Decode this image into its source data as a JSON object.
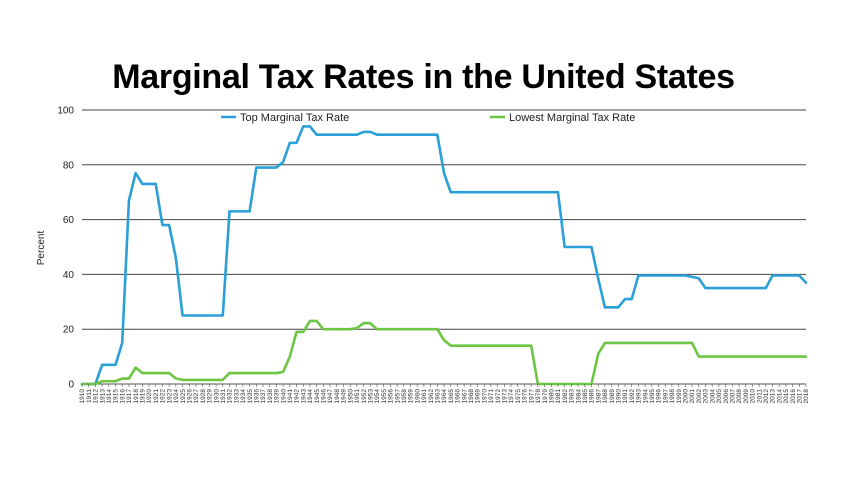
{
  "chart_data": {
    "type": "line",
    "title": "Marginal Tax Rates in the United States",
    "xlabel": "",
    "ylabel": "Percent",
    "ylim": [
      0,
      100
    ],
    "yticks": [
      0,
      20,
      40,
      60,
      80,
      100
    ],
    "grid": "horizontal",
    "legend_position": "top",
    "x": [
      1910,
      1911,
      1912,
      1913,
      1914,
      1915,
      1916,
      1917,
      1918,
      1919,
      1920,
      1921,
      1922,
      1923,
      1924,
      1925,
      1926,
      1927,
      1928,
      1929,
      1930,
      1931,
      1932,
      1933,
      1934,
      1935,
      1936,
      1937,
      1938,
      1939,
      1940,
      1941,
      1942,
      1943,
      1944,
      1945,
      1946,
      1947,
      1948,
      1949,
      1950,
      1951,
      1952,
      1953,
      1954,
      1955,
      1956,
      1957,
      1958,
      1959,
      1960,
      1961,
      1962,
      1963,
      1964,
      1965,
      1966,
      1967,
      1968,
      1969,
      1970,
      1971,
      1972,
      1973,
      1974,
      1975,
      1976,
      1977,
      1978,
      1979,
      1980,
      1981,
      1982,
      1983,
      1984,
      1985,
      1986,
      1987,
      1988,
      1989,
      1990,
      1991,
      1992,
      1993,
      1994,
      1995,
      1996,
      1997,
      1998,
      1999,
      2000,
      2001,
      2002,
      2003,
      2004,
      2005,
      2006,
      2007,
      2008,
      2009,
      2010,
      2011,
      2012,
      2013,
      2014,
      2015,
      2016,
      2017,
      2018
    ],
    "series": [
      {
        "name": "Top Marginal Tax Rate",
        "color": "#2a9fd8",
        "values": [
          0,
          0,
          0,
          7,
          7,
          7,
          15,
          67,
          77,
          73,
          73,
          73,
          58,
          58,
          46,
          25,
          25,
          25,
          25,
          25,
          25,
          25,
          63,
          63,
          63,
          63,
          79,
          79,
          79,
          79,
          81,
          88,
          88,
          94,
          94,
          91,
          91,
          91,
          91,
          91,
          91,
          91,
          92,
          92,
          91,
          91,
          91,
          91,
          91,
          91,
          91,
          91,
          91,
          91,
          77,
          70,
          70,
          70,
          70,
          70,
          70,
          70,
          70,
          70,
          70,
          70,
          70,
          70,
          70,
          70,
          70,
          70,
          50,
          50,
          50,
          50,
          50,
          38.5,
          28,
          28,
          28,
          31,
          31,
          39.6,
          39.6,
          39.6,
          39.6,
          39.6,
          39.6,
          39.6,
          39.6,
          39.1,
          38.6,
          35,
          35,
          35,
          35,
          35,
          35,
          35,
          35,
          35,
          35,
          39.6,
          39.6,
          39.6,
          39.6,
          39.6,
          37
        ]
      },
      {
        "name": "Lowest Marginal Tax Rate",
        "color": "#6cc644",
        "values": [
          0,
          0,
          0,
          1,
          1,
          1,
          2,
          2,
          6,
          4,
          4,
          4,
          4,
          4,
          2,
          1.5,
          1.5,
          1.5,
          1.5,
          1.5,
          1.5,
          1.5,
          4,
          4,
          4,
          4,
          4,
          4,
          4,
          4,
          4.4,
          10,
          19,
          19,
          23,
          23,
          20,
          20,
          20,
          20,
          20,
          20.4,
          22.2,
          22.2,
          20,
          20,
          20,
          20,
          20,
          20,
          20,
          20,
          20,
          20,
          16,
          14,
          14,
          14,
          14,
          14,
          14,
          14,
          14,
          14,
          14,
          14,
          14,
          14,
          0,
          0,
          0,
          0,
          0,
          0,
          0,
          0,
          0,
          11,
          15,
          15,
          15,
          15,
          15,
          15,
          15,
          15,
          15,
          15,
          15,
          15,
          15,
          15,
          10,
          10,
          10,
          10,
          10,
          10,
          10,
          10,
          10,
          10,
          10,
          10,
          10,
          10,
          10,
          10,
          10
        ]
      }
    ]
  }
}
